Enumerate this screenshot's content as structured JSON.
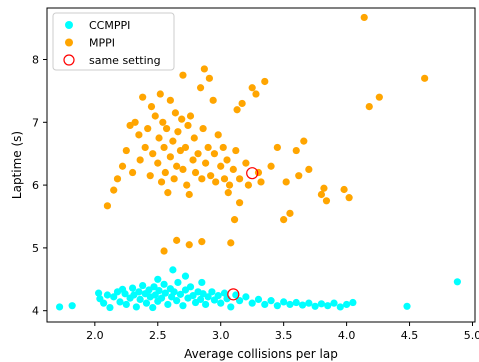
{
  "chart_data": {
    "type": "scatter",
    "title": "",
    "xlabel": "Average collisions per lap",
    "ylabel": "Laptime (s)",
    "xlim": [
      1.62,
      5.02
    ],
    "ylim": [
      3.82,
      8.82
    ],
    "xticks": [
      "2.0",
      "2.5",
      "3.0",
      "3.5",
      "4.0",
      "4.5",
      "5.0"
    ],
    "yticks": [
      "4",
      "5",
      "6",
      "7",
      "8"
    ],
    "grid": false,
    "legend_position": "top-left",
    "series": [
      {
        "name": "CCMPPI",
        "color": "#00ffff",
        "marker": "filled-circle",
        "points": [
          [
            1.72,
            4.06
          ],
          [
            1.82,
            4.08
          ],
          [
            2.03,
            4.28
          ],
          [
            2.04,
            4.19
          ],
          [
            2.07,
            4.12
          ],
          [
            2.1,
            4.25
          ],
          [
            2.12,
            4.05
          ],
          [
            2.15,
            4.22
          ],
          [
            2.18,
            4.3
          ],
          [
            2.2,
            4.14
          ],
          [
            2.22,
            4.34
          ],
          [
            2.24,
            4.27
          ],
          [
            2.25,
            4.1
          ],
          [
            2.28,
            4.2
          ],
          [
            2.3,
            4.36
          ],
          [
            2.31,
            4.25
          ],
          [
            2.33,
            4.06
          ],
          [
            2.35,
            4.3
          ],
          [
            2.36,
            4.18
          ],
          [
            2.38,
            4.4
          ],
          [
            2.4,
            4.27
          ],
          [
            2.41,
            4.12
          ],
          [
            2.43,
            4.33
          ],
          [
            2.44,
            4.22
          ],
          [
            2.46,
            4.05
          ],
          [
            2.47,
            4.38
          ],
          [
            2.48,
            4.25
          ],
          [
            2.5,
            4.15
          ],
          [
            2.51,
            4.32
          ],
          [
            2.53,
            4.2
          ],
          [
            2.55,
            4.42
          ],
          [
            2.56,
            4.28
          ],
          [
            2.58,
            4.1
          ],
          [
            2.6,
            4.35
          ],
          [
            2.61,
            4.22
          ],
          [
            2.63,
            4.3
          ],
          [
            2.65,
            4.16
          ],
          [
            2.66,
            4.45
          ],
          [
            2.68,
            4.26
          ],
          [
            2.7,
            4.08
          ],
          [
            2.72,
            4.33
          ],
          [
            2.74,
            4.2
          ],
          [
            2.76,
            4.38
          ],
          [
            2.78,
            4.24
          ],
          [
            2.8,
            4.13
          ],
          [
            2.82,
            4.3
          ],
          [
            2.84,
            4.18
          ],
          [
            2.86,
            4.27
          ],
          [
            2.88,
            4.1
          ],
          [
            2.9,
            4.22
          ],
          [
            2.93,
            4.3
          ],
          [
            2.95,
            4.17
          ],
          [
            2.98,
            4.24
          ],
          [
            3.0,
            4.12
          ],
          [
            3.03,
            4.28
          ],
          [
            3.05,
            4.19
          ],
          [
            3.08,
            4.06
          ],
          [
            3.12,
            4.25
          ],
          [
            3.15,
            4.16
          ],
          [
            3.2,
            4.22
          ],
          [
            3.25,
            4.12
          ],
          [
            3.3,
            4.18
          ],
          [
            3.35,
            4.1
          ],
          [
            3.4,
            4.16
          ],
          [
            3.45,
            4.08
          ],
          [
            3.5,
            4.14
          ],
          [
            3.55,
            4.1
          ],
          [
            3.6,
            4.13
          ],
          [
            3.65,
            4.09
          ],
          [
            3.7,
            4.12
          ],
          [
            3.75,
            4.07
          ],
          [
            3.8,
            4.11
          ],
          [
            3.85,
            4.08
          ],
          [
            3.9,
            4.12
          ],
          [
            3.95,
            4.06
          ],
          [
            4.0,
            4.1
          ],
          [
            4.05,
            4.13
          ],
          [
            4.48,
            4.07
          ],
          [
            4.88,
            4.46
          ],
          [
            2.62,
            4.65
          ],
          [
            2.72,
            4.55
          ],
          [
            2.5,
            4.5
          ],
          [
            2.85,
            4.45
          ]
        ]
      },
      {
        "name": "MPPI",
        "color": "#ffa500",
        "marker": "filled-circle",
        "points": [
          [
            2.1,
            5.67
          ],
          [
            2.15,
            5.92
          ],
          [
            2.18,
            6.1
          ],
          [
            2.22,
            6.3
          ],
          [
            2.25,
            6.55
          ],
          [
            2.28,
            6.95
          ],
          [
            2.3,
            6.2
          ],
          [
            2.32,
            7.0
          ],
          [
            2.35,
            6.8
          ],
          [
            2.36,
            6.4
          ],
          [
            2.38,
            7.4
          ],
          [
            2.4,
            6.6
          ],
          [
            2.42,
            6.9
          ],
          [
            2.44,
            6.15
          ],
          [
            2.45,
            7.25
          ],
          [
            2.46,
            6.5
          ],
          [
            2.48,
            7.1
          ],
          [
            2.5,
            6.35
          ],
          [
            2.51,
            6.75
          ],
          [
            2.52,
            7.45
          ],
          [
            2.53,
            6.05
          ],
          [
            2.54,
            7.0
          ],
          [
            2.55,
            6.6
          ],
          [
            2.56,
            6.2
          ],
          [
            2.57,
            6.9
          ],
          [
            2.58,
            5.88
          ],
          [
            2.6,
            7.35
          ],
          [
            2.6,
            6.45
          ],
          [
            2.62,
            6.7
          ],
          [
            2.63,
            6.1
          ],
          [
            2.64,
            7.15
          ],
          [
            2.65,
            6.3
          ],
          [
            2.66,
            6.85
          ],
          [
            2.68,
            6.55
          ],
          [
            2.69,
            7.05
          ],
          [
            2.7,
            6.25
          ],
          [
            2.7,
            7.75
          ],
          [
            2.72,
            6.6
          ],
          [
            2.73,
            6.0
          ],
          [
            2.74,
            6.95
          ],
          [
            2.75,
            5.85
          ],
          [
            2.76,
            7.1
          ],
          [
            2.78,
            6.4
          ],
          [
            2.79,
            6.75
          ],
          [
            2.8,
            6.2
          ],
          [
            2.82,
            6.5
          ],
          [
            2.84,
            7.55
          ],
          [
            2.85,
            6.1
          ],
          [
            2.86,
            6.9
          ],
          [
            2.87,
            7.85
          ],
          [
            2.88,
            6.35
          ],
          [
            2.9,
            6.6
          ],
          [
            2.91,
            7.7
          ],
          [
            2.92,
            6.15
          ],
          [
            2.94,
            7.35
          ],
          [
            2.95,
            6.5
          ],
          [
            2.96,
            6.05
          ],
          [
            2.98,
            6.8
          ],
          [
            3.0,
            6.3
          ],
          [
            3.02,
            6.6
          ],
          [
            3.03,
            6.1
          ],
          [
            3.05,
            6.4
          ],
          [
            3.07,
            6.0
          ],
          [
            3.1,
            6.25
          ],
          [
            3.12,
            6.55
          ],
          [
            3.13,
            7.2
          ],
          [
            3.15,
            6.1
          ],
          [
            3.17,
            7.3
          ],
          [
            3.2,
            6.35
          ],
          [
            3.22,
            6.0
          ],
          [
            3.25,
            7.55
          ],
          [
            3.28,
            7.45
          ],
          [
            3.3,
            6.2
          ],
          [
            3.32,
            6.05
          ],
          [
            3.35,
            7.65
          ],
          [
            3.4,
            6.3
          ],
          [
            3.45,
            6.6
          ],
          [
            3.5,
            5.45
          ],
          [
            3.52,
            6.05
          ],
          [
            3.55,
            5.55
          ],
          [
            3.6,
            6.55
          ],
          [
            3.62,
            6.15
          ],
          [
            3.66,
            6.7
          ],
          [
            3.7,
            6.25
          ],
          [
            3.8,
            5.85
          ],
          [
            3.82,
            5.95
          ],
          [
            3.84,
            5.75
          ],
          [
            3.98,
            5.93
          ],
          [
            4.02,
            5.8
          ],
          [
            4.14,
            8.67
          ],
          [
            4.18,
            7.25
          ],
          [
            4.26,
            7.4
          ],
          [
            4.62,
            7.7
          ],
          [
            2.55,
            4.95
          ],
          [
            2.65,
            5.12
          ],
          [
            2.75,
            5.05
          ],
          [
            2.85,
            5.1
          ],
          [
            3.08,
            5.08
          ],
          [
            3.11,
            5.45
          ],
          [
            3.15,
            5.72
          ],
          [
            3.06,
            5.88
          ]
        ]
      },
      {
        "name": "same setting",
        "color": "#ff0000",
        "marker": "hollow-circle",
        "points": [
          [
            3.1,
            4.26
          ],
          [
            3.25,
            6.19
          ]
        ]
      }
    ]
  }
}
